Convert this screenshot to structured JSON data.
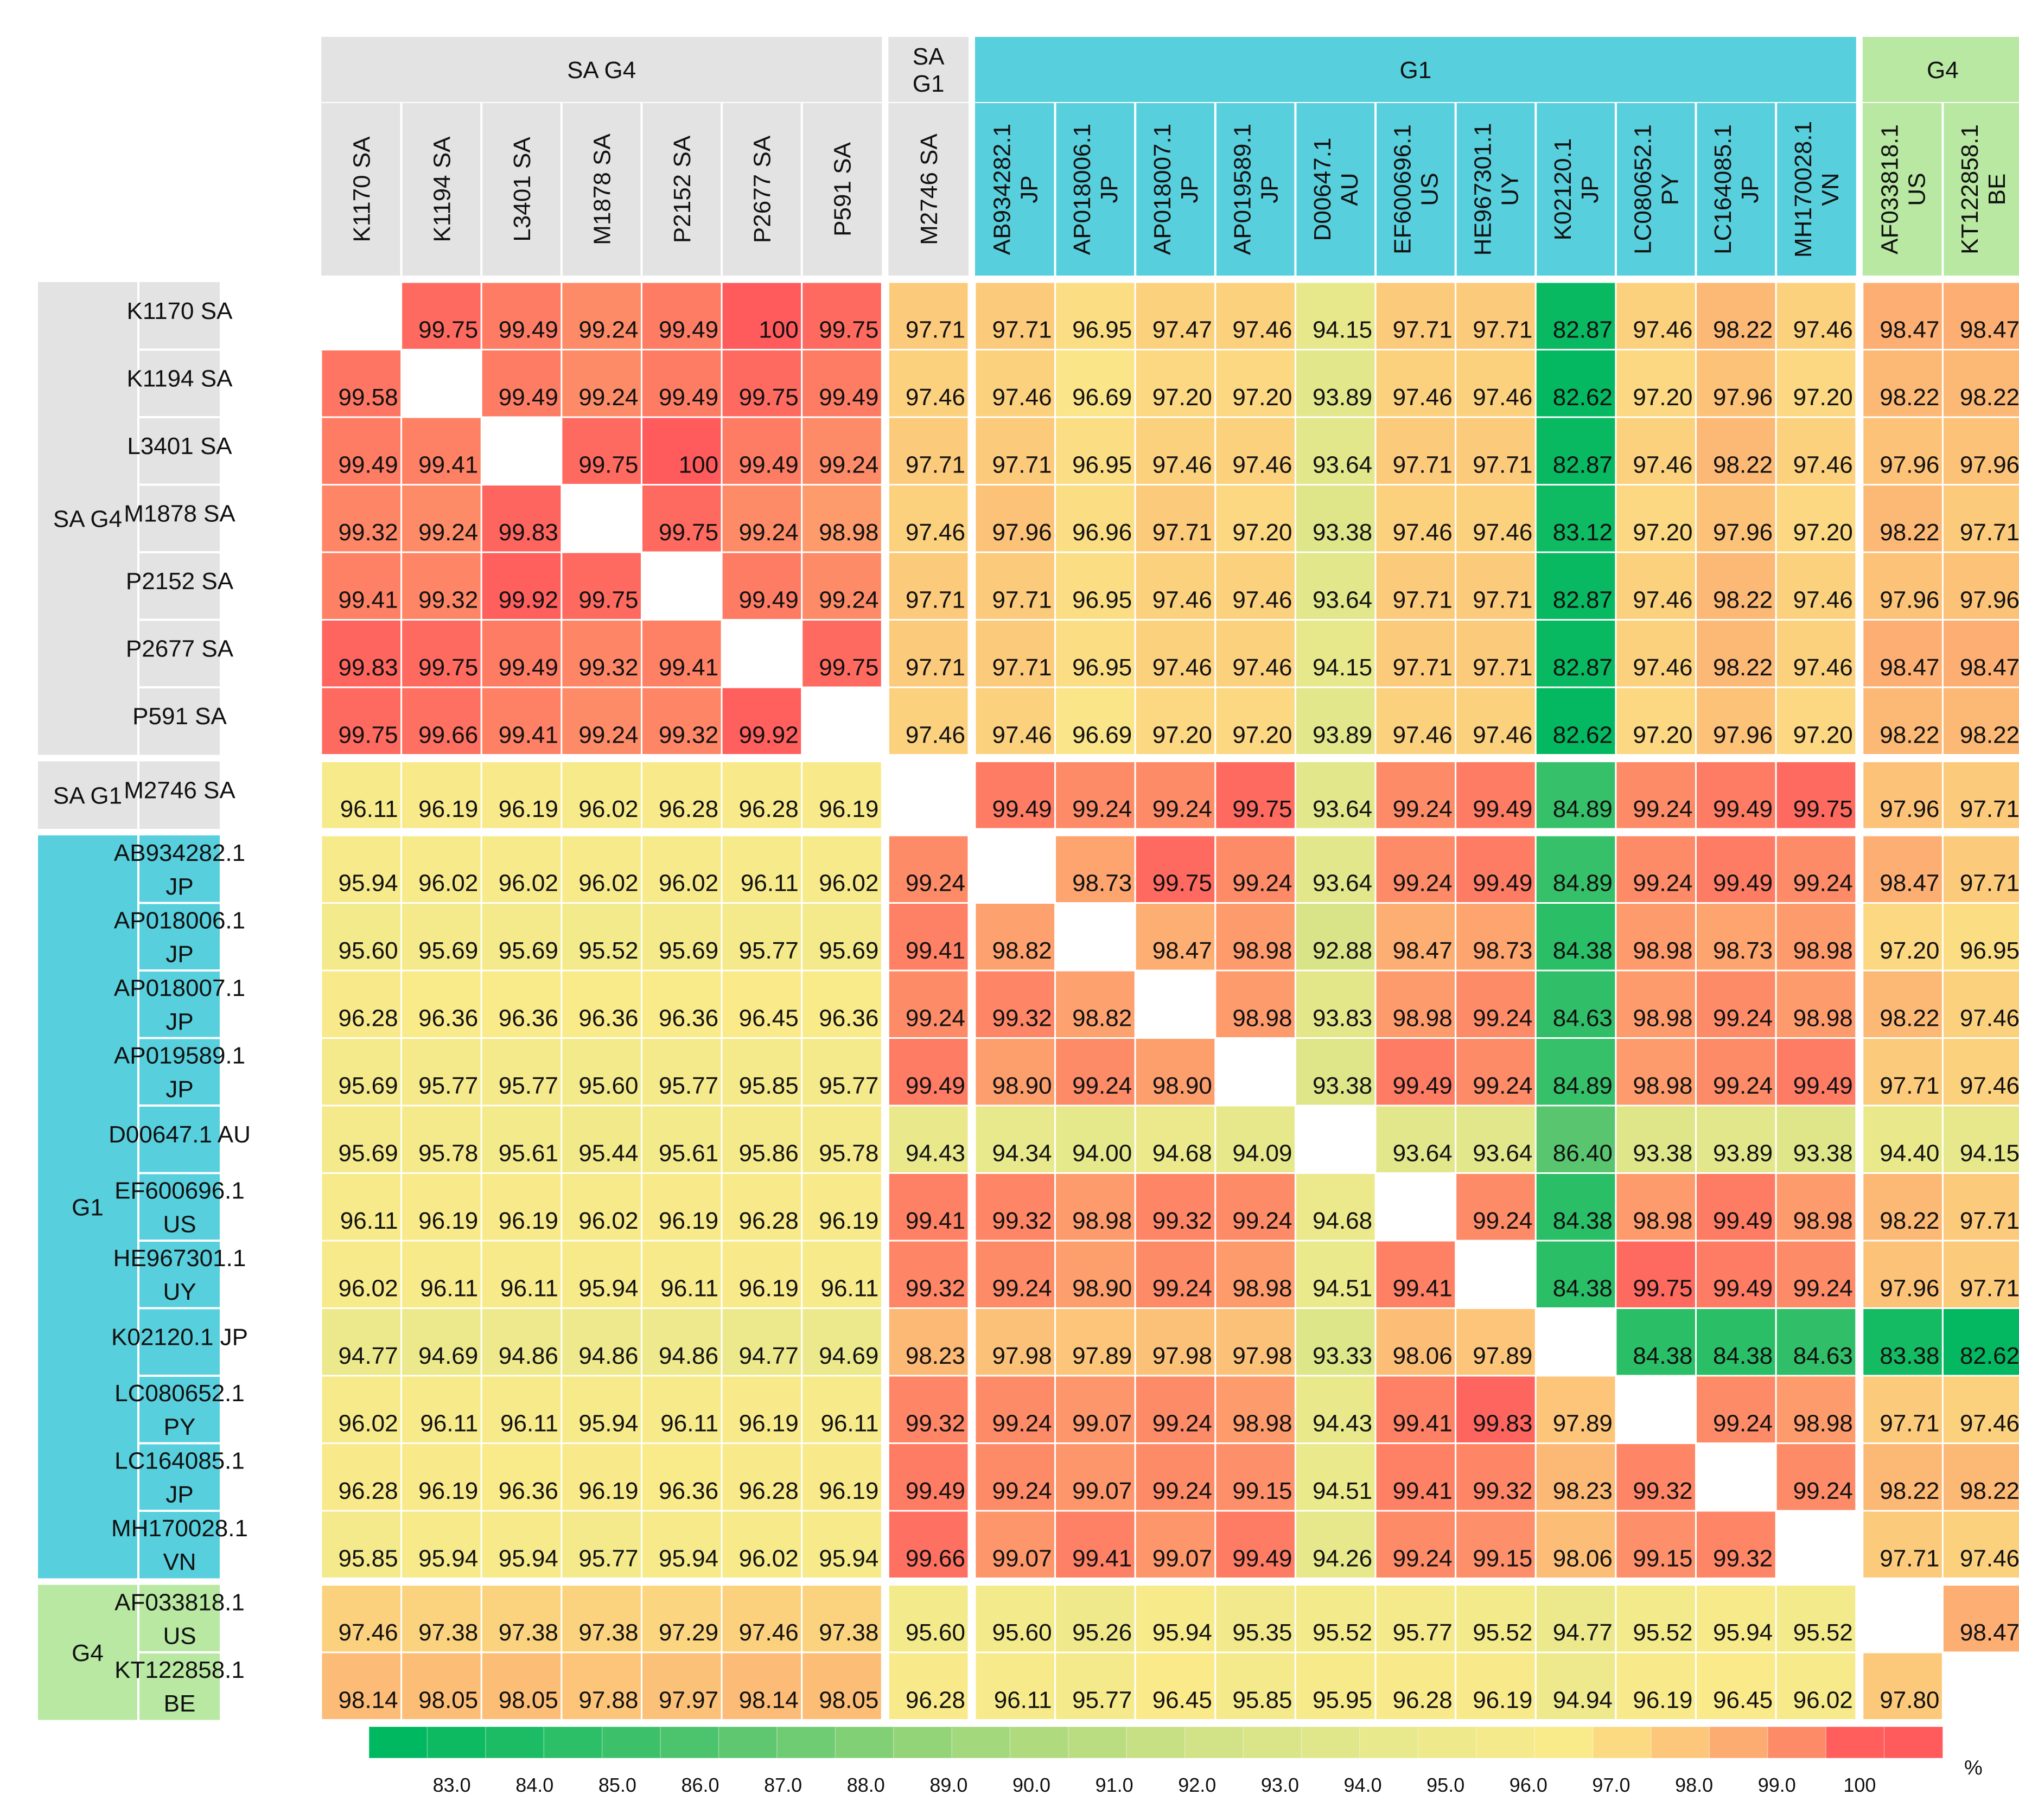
{
  "chart_data": {
    "type": "heatmap",
    "title": "",
    "unit_label": "%",
    "groups": [
      {
        "name": "SA G4",
        "size": 7,
        "color": "#e3e3e3"
      },
      {
        "name": "SA G1",
        "size": 1,
        "color": "#e3e3e3"
      },
      {
        "name": "G1",
        "size": 11,
        "color": "#57cfdd"
      },
      {
        "name": "G4",
        "size": 2,
        "color": "#b8e8a2"
      }
    ],
    "col_group_labels": [
      "SA G4",
      "SA\nG1",
      "G1",
      "G4"
    ],
    "row_group_labels": [
      "SA G4",
      "SA G1",
      "G1",
      "G4"
    ],
    "column_labels": [
      "K1170 SA",
      "K1194 SA",
      "L3401 SA",
      "M1878 SA",
      "P2152 SA",
      "P2677 SA",
      "P591 SA",
      "M2746 SA",
      "AB934282.1\nJP",
      "AP018006.1\nJP",
      "AP018007.1\nJP",
      "AP019589.1\nJP",
      "D00647.1\nAU",
      "EF600696.1\nUS",
      "HE967301.1\nUY",
      "K02120.1\nJP",
      "LC080652.1\nPY",
      "LC164085.1\nJP",
      "MH170028.1\nVN",
      "AF033818.1\nUS",
      "KT122858.1\nBE"
    ],
    "row_labels": [
      "K1170 SA",
      "K1194 SA",
      "L3401 SA",
      "M1878 SA",
      "P2152 SA",
      "P2677 SA",
      "P591 SA",
      "M2746 SA",
      "AB934282.1\nJP",
      "AP018006.1\nJP",
      "AP018007.1\nJP",
      "AP019589.1\nJP",
      "D00647.1 AU",
      "EF600696.1\nUS",
      "HE967301.1\nUY",
      "K02120.1 JP",
      "LC080652.1\nPY",
      "LC164085.1\nJP",
      "MH170028.1\nVN",
      "AF033818.1\nUS",
      "KT122858.1\nBE"
    ],
    "values": [
      [
        null,
        "99.75",
        "99.49",
        "99.24",
        "99.49",
        "100",
        "99.75",
        "97.71",
        "97.71",
        "96.95",
        "97.47",
        "97.46",
        "94.15",
        "97.71",
        "97.71",
        "82.87",
        "97.46",
        "98.22",
        "97.46",
        "98.47",
        "98.47"
      ],
      [
        "99.58",
        null,
        "99.49",
        "99.24",
        "99.49",
        "99.75",
        "99.49",
        "97.46",
        "97.46",
        "96.69",
        "97.20",
        "97.20",
        "93.89",
        "97.46",
        "97.46",
        "82.62",
        "97.20",
        "97.96",
        "97.20",
        "98.22",
        "98.22"
      ],
      [
        "99.49",
        "99.41",
        null,
        "99.75",
        "100",
        "99.49",
        "99.24",
        "97.71",
        "97.71",
        "96.95",
        "97.46",
        "97.46",
        "93.64",
        "97.71",
        "97.71",
        "82.87",
        "97.46",
        "98.22",
        "97.46",
        "97.96",
        "97.96"
      ],
      [
        "99.32",
        "99.24",
        "99.83",
        null,
        "99.75",
        "99.24",
        "98.98",
        "97.46",
        "97.96",
        "96.96",
        "97.71",
        "97.20",
        "93.38",
        "97.46",
        "97.46",
        "83.12",
        "97.20",
        "97.96",
        "97.20",
        "98.22",
        "97.71"
      ],
      [
        "99.41",
        "99.32",
        "99.92",
        "99.75",
        null,
        "99.49",
        "99.24",
        "97.71",
        "97.71",
        "96.95",
        "97.46",
        "97.46",
        "93.64",
        "97.71",
        "97.71",
        "82.87",
        "97.46",
        "98.22",
        "97.46",
        "97.96",
        "97.96"
      ],
      [
        "99.83",
        "99.75",
        "99.49",
        "99.32",
        "99.41",
        null,
        "99.75",
        "97.71",
        "97.71",
        "96.95",
        "97.46",
        "97.46",
        "94.15",
        "97.71",
        "97.71",
        "82.87",
        "97.46",
        "98.22",
        "97.46",
        "98.47",
        "98.47"
      ],
      [
        "99.75",
        "99.66",
        "99.41",
        "99.24",
        "99.32",
        "99.92",
        null,
        "97.46",
        "97.46",
        "96.69",
        "97.20",
        "97.20",
        "93.89",
        "97.46",
        "97.46",
        "82.62",
        "97.20",
        "97.96",
        "97.20",
        "98.22",
        "98.22"
      ],
      [
        "96.11",
        "96.19",
        "96.19",
        "96.02",
        "96.28",
        "96.28",
        "96.19",
        null,
        "99.49",
        "99.24",
        "99.24",
        "99.75",
        "93.64",
        "99.24",
        "99.49",
        "84.89",
        "99.24",
        "99.49",
        "99.75",
        "97.96",
        "97.71"
      ],
      [
        "95.94",
        "96.02",
        "96.02",
        "96.02",
        "96.02",
        "96.11",
        "96.02",
        "99.24",
        null,
        "98.73",
        "99.75",
        "99.24",
        "93.64",
        "99.24",
        "99.49",
        "84.89",
        "99.24",
        "99.49",
        "99.24",
        "98.47",
        "97.71"
      ],
      [
        "95.60",
        "95.69",
        "95.69",
        "95.52",
        "95.69",
        "95.77",
        "95.69",
        "99.41",
        "98.82",
        null,
        "98.47",
        "98.98",
        "92.88",
        "98.47",
        "98.73",
        "84.38",
        "98.98",
        "98.73",
        "98.98",
        "97.20",
        "96.95"
      ],
      [
        "96.28",
        "96.36",
        "96.36",
        "96.36",
        "96.36",
        "96.45",
        "96.36",
        "99.24",
        "99.32",
        "98.82",
        null,
        "98.98",
        "93.83",
        "98.98",
        "99.24",
        "84.63",
        "98.98",
        "99.24",
        "98.98",
        "98.22",
        "97.46"
      ],
      [
        "95.69",
        "95.77",
        "95.77",
        "95.60",
        "95.77",
        "95.85",
        "95.77",
        "99.49",
        "98.90",
        "99.24",
        "98.90",
        null,
        "93.38",
        "99.49",
        "99.24",
        "84.89",
        "98.98",
        "99.24",
        "99.49",
        "97.71",
        "97.46"
      ],
      [
        "95.69",
        "95.78",
        "95.61",
        "95.44",
        "95.61",
        "95.86",
        "95.78",
        "94.43",
        "94.34",
        "94.00",
        "94.68",
        "94.09",
        null,
        "93.64",
        "93.64",
        "86.40",
        "93.38",
        "93.89",
        "93.38",
        "94.40",
        "94.15"
      ],
      [
        "96.11",
        "96.19",
        "96.19",
        "96.02",
        "96.19",
        "96.28",
        "96.19",
        "99.41",
        "99.32",
        "98.98",
        "99.32",
        "99.24",
        "94.68",
        null,
        "99.24",
        "84.38",
        "98.98",
        "99.49",
        "98.98",
        "98.22",
        "97.71"
      ],
      [
        "96.02",
        "96.11",
        "96.11",
        "95.94",
        "96.11",
        "96.19",
        "96.11",
        "99.32",
        "99.24",
        "98.90",
        "99.24",
        "98.98",
        "94.51",
        "99.41",
        null,
        "84.38",
        "99.75",
        "99.49",
        "99.24",
        "97.96",
        "97.71"
      ],
      [
        "94.77",
        "94.69",
        "94.86",
        "94.86",
        "94.86",
        "94.77",
        "94.69",
        "98.23",
        "97.98",
        "97.89",
        "97.98",
        "97.98",
        "93.33",
        "98.06",
        "97.89",
        null,
        "84.38",
        "84.38",
        "84.63",
        "83.38",
        "82.62"
      ],
      [
        "96.02",
        "96.11",
        "96.11",
        "95.94",
        "96.11",
        "96.19",
        "96.11",
        "99.32",
        "99.24",
        "99.07",
        "99.24",
        "98.98",
        "94.43",
        "99.41",
        "99.83",
        "97.89",
        null,
        "99.24",
        "98.98",
        "97.71",
        "97.46"
      ],
      [
        "96.28",
        "96.19",
        "96.36",
        "96.19",
        "96.36",
        "96.28",
        "96.19",
        "99.49",
        "99.24",
        "99.07",
        "99.24",
        "99.15",
        "94.51",
        "99.41",
        "99.32",
        "98.23",
        "99.32",
        null,
        "99.24",
        "98.22",
        "98.22"
      ],
      [
        "95.85",
        "95.94",
        "95.94",
        "95.77",
        "95.94",
        "96.02",
        "95.94",
        "99.66",
        "99.07",
        "99.41",
        "99.07",
        "99.49",
        "94.26",
        "99.24",
        "99.15",
        "98.06",
        "99.15",
        "99.32",
        null,
        "97.71",
        "97.46"
      ],
      [
        "97.46",
        "97.38",
        "97.38",
        "97.38",
        "97.29",
        "97.46",
        "97.38",
        "95.60",
        "95.60",
        "95.26",
        "95.94",
        "95.35",
        "95.52",
        "95.77",
        "95.52",
        "94.77",
        "95.52",
        "95.94",
        "95.52",
        null,
        "98.47"
      ],
      [
        "98.14",
        "98.05",
        "98.05",
        "97.88",
        "97.97",
        "98.14",
        "98.05",
        "96.28",
        "96.11",
        "95.77",
        "96.45",
        "95.85",
        "95.95",
        "96.28",
        "96.19",
        "94.94",
        "96.19",
        "96.45",
        "96.02",
        "97.80",
        null
      ]
    ],
    "color_scale": {
      "min": 82.5,
      "max": 100,
      "stops": [
        {
          "v": 82.5,
          "color": "#00b860"
        },
        {
          "v": 86.0,
          "color": "#4fc46d"
        },
        {
          "v": 89.0,
          "color": "#9cd67a"
        },
        {
          "v": 92.0,
          "color": "#cfe286"
        },
        {
          "v": 94.5,
          "color": "#eae98c"
        },
        {
          "v": 96.5,
          "color": "#faea8a"
        },
        {
          "v": 97.8,
          "color": "#fcc87a"
        },
        {
          "v": 99.0,
          "color": "#fd9a6c"
        },
        {
          "v": 100,
          "color": "#ff5a5c"
        }
      ]
    },
    "legend": {
      "position": "bottom",
      "ticks": [
        "83.0",
        "84.0",
        "85.0",
        "86.0",
        "87.0",
        "88.0",
        "89.0",
        "90.0",
        "91.0",
        "92.0",
        "93.0",
        "94.0",
        "95.0",
        "96.0",
        "97.0",
        "98.0",
        "99.0",
        "100"
      ]
    }
  }
}
